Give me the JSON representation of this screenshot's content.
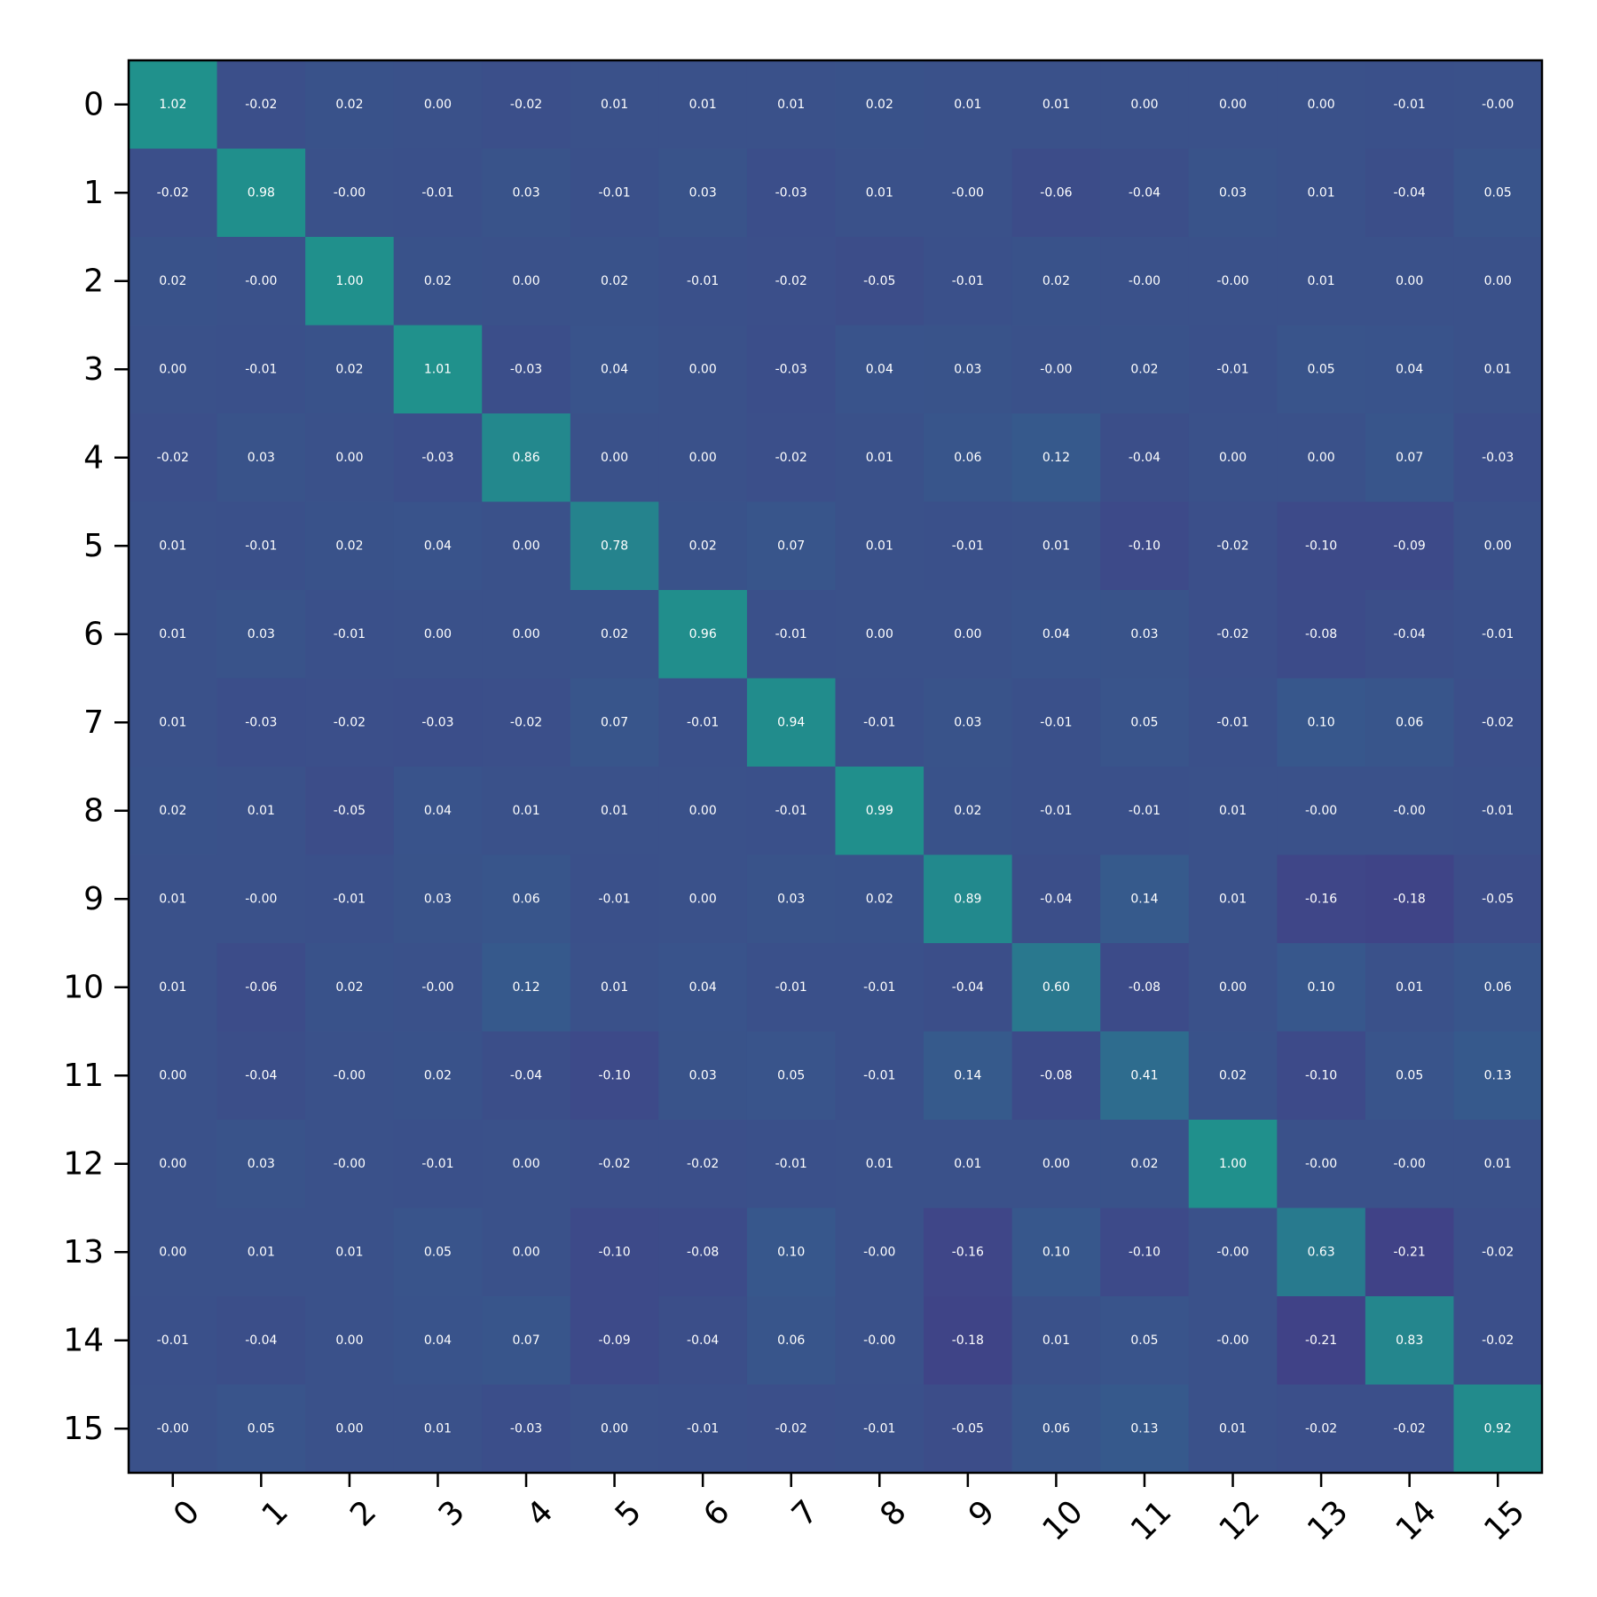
{
  "chart_data": {
    "type": "heatmap",
    "title": "",
    "xlabel": "",
    "ylabel": "",
    "x_ticks": [
      "0",
      "1",
      "2",
      "3",
      "4",
      "5",
      "6",
      "7",
      "8",
      "9",
      "10",
      "11",
      "12",
      "13",
      "14",
      "15"
    ],
    "y_ticks": [
      "0",
      "1",
      "2",
      "3",
      "4",
      "5",
      "6",
      "7",
      "8",
      "9",
      "10",
      "11",
      "12",
      "13",
      "14",
      "15"
    ],
    "colormap": "viridis",
    "color_range": [
      -1,
      3
    ],
    "values": [
      [
        1.02,
        -0.02,
        0.02,
        0.0,
        -0.02,
        0.01,
        0.01,
        0.01,
        0.02,
        0.01,
        0.01,
        0.0,
        0.0,
        0.0,
        -0.01,
        -0.0
      ],
      [
        -0.02,
        0.98,
        -0.0,
        -0.01,
        0.03,
        -0.01,
        0.03,
        -0.03,
        0.01,
        -0.0,
        -0.06,
        -0.04,
        0.03,
        0.01,
        -0.04,
        0.05
      ],
      [
        0.02,
        -0.0,
        1.0,
        0.02,
        0.0,
        0.02,
        -0.01,
        -0.02,
        -0.05,
        -0.01,
        0.02,
        -0.0,
        -0.0,
        0.01,
        0.0,
        0.0
      ],
      [
        0.0,
        -0.01,
        0.02,
        1.01,
        -0.03,
        0.04,
        0.0,
        -0.03,
        0.04,
        0.03,
        -0.0,
        0.02,
        -0.01,
        0.05,
        0.04,
        0.01
      ],
      [
        -0.02,
        0.03,
        0.0,
        -0.03,
        0.86,
        0.0,
        0.0,
        -0.02,
        0.01,
        0.06,
        0.12,
        -0.04,
        0.0,
        0.0,
        0.07,
        -0.03
      ],
      [
        0.01,
        -0.01,
        0.02,
        0.04,
        0.0,
        0.78,
        0.02,
        0.07,
        0.01,
        -0.01,
        0.01,
        -0.1,
        -0.02,
        -0.1,
        -0.09,
        0.0
      ],
      [
        0.01,
        0.03,
        -0.01,
        0.0,
        0.0,
        0.02,
        0.96,
        -0.01,
        0.0,
        0.0,
        0.04,
        0.03,
        -0.02,
        -0.08,
        -0.04,
        -0.01
      ],
      [
        0.01,
        -0.03,
        -0.02,
        -0.03,
        -0.02,
        0.07,
        -0.01,
        0.94,
        -0.01,
        0.03,
        -0.01,
        0.05,
        -0.01,
        0.1,
        0.06,
        -0.02
      ],
      [
        0.02,
        0.01,
        -0.05,
        0.04,
        0.01,
        0.01,
        0.0,
        -0.01,
        0.99,
        0.02,
        -0.01,
        -0.01,
        0.01,
        -0.0,
        -0.0,
        -0.01
      ],
      [
        0.01,
        -0.0,
        -0.01,
        0.03,
        0.06,
        -0.01,
        0.0,
        0.03,
        0.02,
        0.89,
        -0.04,
        0.14,
        0.01,
        -0.16,
        -0.18,
        -0.05
      ],
      [
        0.01,
        -0.06,
        0.02,
        -0.0,
        0.12,
        0.01,
        0.04,
        -0.01,
        -0.01,
        -0.04,
        0.6,
        -0.08,
        0.0,
        0.1,
        0.01,
        0.06
      ],
      [
        0.0,
        -0.04,
        -0.0,
        0.02,
        -0.04,
        -0.1,
        0.03,
        0.05,
        -0.01,
        0.14,
        -0.08,
        0.41,
        0.02,
        -0.1,
        0.05,
        0.13
      ],
      [
        0.0,
        0.03,
        -0.0,
        -0.01,
        0.0,
        -0.02,
        -0.02,
        -0.01,
        0.01,
        0.01,
        0.0,
        0.02,
        1.0,
        -0.0,
        -0.0,
        0.01
      ],
      [
        0.0,
        0.01,
        0.01,
        0.05,
        0.0,
        -0.1,
        -0.08,
        0.1,
        -0.0,
        -0.16,
        0.1,
        -0.1,
        -0.0,
        0.63,
        -0.21,
        -0.02
      ],
      [
        -0.01,
        -0.04,
        0.0,
        0.04,
        0.07,
        -0.09,
        -0.04,
        0.06,
        -0.0,
        -0.18,
        0.01,
        0.05,
        -0.0,
        -0.21,
        0.83,
        -0.02
      ],
      [
        -0.0,
        0.05,
        0.0,
        0.01,
        -0.03,
        0.0,
        -0.01,
        -0.02,
        -0.01,
        -0.05,
        0.06,
        0.13,
        0.01,
        -0.02,
        -0.02,
        0.92
      ]
    ],
    "cell_text": [
      [
        "1.02",
        "-0.02",
        "0.02",
        "0.00",
        "-0.02",
        "0.01",
        "0.01",
        "0.01",
        "0.02",
        "0.01",
        "0.01",
        "0.00",
        "0.00",
        "0.00",
        "-0.01",
        "-0.00"
      ],
      [
        "-0.02",
        "0.98",
        "-0.00",
        "-0.01",
        "0.03",
        "-0.01",
        "0.03",
        "-0.03",
        "0.01",
        "-0.00",
        "-0.06",
        "-0.04",
        "0.03",
        "0.01",
        "-0.04",
        "0.05"
      ],
      [
        "0.02",
        "-0.00",
        "1.00",
        "0.02",
        "0.00",
        "0.02",
        "-0.01",
        "-0.02",
        "-0.05",
        "-0.01",
        "0.02",
        "-0.00",
        "-0.00",
        "0.01",
        "0.00",
        "0.00"
      ],
      [
        "0.00",
        "-0.01",
        "0.02",
        "1.01",
        "-0.03",
        "0.04",
        "0.00",
        "-0.03",
        "0.04",
        "0.03",
        "-0.00",
        "0.02",
        "-0.01",
        "0.05",
        "0.04",
        "0.01"
      ],
      [
        "-0.02",
        "0.03",
        "0.00",
        "-0.03",
        "0.86",
        "0.00",
        "0.00",
        "-0.02",
        "0.01",
        "0.06",
        "0.12",
        "-0.04",
        "0.00",
        "0.00",
        "0.07",
        "-0.03"
      ],
      [
        "0.01",
        "-0.01",
        "0.02",
        "0.04",
        "0.00",
        "0.78",
        "0.02",
        "0.07",
        "0.01",
        "-0.01",
        "0.01",
        "-0.10",
        "-0.02",
        "-0.10",
        "-0.09",
        "0.00"
      ],
      [
        "0.01",
        "0.03",
        "-0.01",
        "0.00",
        "0.00",
        "0.02",
        "0.96",
        "-0.01",
        "0.00",
        "0.00",
        "0.04",
        "0.03",
        "-0.02",
        "-0.08",
        "-0.04",
        "-0.01"
      ],
      [
        "0.01",
        "-0.03",
        "-0.02",
        "-0.03",
        "-0.02",
        "0.07",
        "-0.01",
        "0.94",
        "-0.01",
        "0.03",
        "-0.01",
        "0.05",
        "-0.01",
        "0.10",
        "0.06",
        "-0.02"
      ],
      [
        "0.02",
        "0.01",
        "-0.05",
        "0.04",
        "0.01",
        "0.01",
        "0.00",
        "-0.01",
        "0.99",
        "0.02",
        "-0.01",
        "-0.01",
        "0.01",
        "-0.00",
        "-0.00",
        "-0.01"
      ],
      [
        "0.01",
        "-0.00",
        "-0.01",
        "0.03",
        "0.06",
        "-0.01",
        "0.00",
        "0.03",
        "0.02",
        "0.89",
        "-0.04",
        "0.14",
        "0.01",
        "-0.16",
        "-0.18",
        "-0.05"
      ],
      [
        "0.01",
        "-0.06",
        "0.02",
        "-0.00",
        "0.12",
        "0.01",
        "0.04",
        "-0.01",
        "-0.01",
        "-0.04",
        "0.60",
        "-0.08",
        "0.00",
        "0.10",
        "0.01",
        "0.06"
      ],
      [
        "0.00",
        "-0.04",
        "-0.00",
        "0.02",
        "-0.04",
        "-0.10",
        "0.03",
        "0.05",
        "-0.01",
        "0.14",
        "-0.08",
        "0.41",
        "0.02",
        "-0.10",
        "0.05",
        "0.13"
      ],
      [
        "0.00",
        "0.03",
        "-0.00",
        "-0.01",
        "0.00",
        "-0.02",
        "-0.02",
        "-0.01",
        "0.01",
        "0.01",
        "0.00",
        "0.02",
        "1.00",
        "-0.00",
        "-0.00",
        "0.01"
      ],
      [
        "0.00",
        "0.01",
        "0.01",
        "0.05",
        "0.00",
        "-0.10",
        "-0.08",
        "0.10",
        "-0.00",
        "-0.16",
        "0.10",
        "-0.10",
        "-0.00",
        "0.63",
        "-0.21",
        "-0.02"
      ],
      [
        "-0.01",
        "-0.04",
        "0.00",
        "0.04",
        "0.07",
        "-0.09",
        "-0.04",
        "0.06",
        "-0.00",
        "-0.18",
        "0.01",
        "0.05",
        "-0.00",
        "-0.21",
        "0.83",
        "-0.02"
      ],
      [
        "-0.00",
        "0.05",
        "0.00",
        "0.01",
        "-0.03",
        "0.00",
        "-0.01",
        "-0.02",
        "-0.01",
        "-0.05",
        "0.06",
        "0.13",
        "0.01",
        "-0.02",
        "-0.02",
        "0.92"
      ]
    ],
    "grid": false,
    "legend": "none"
  }
}
